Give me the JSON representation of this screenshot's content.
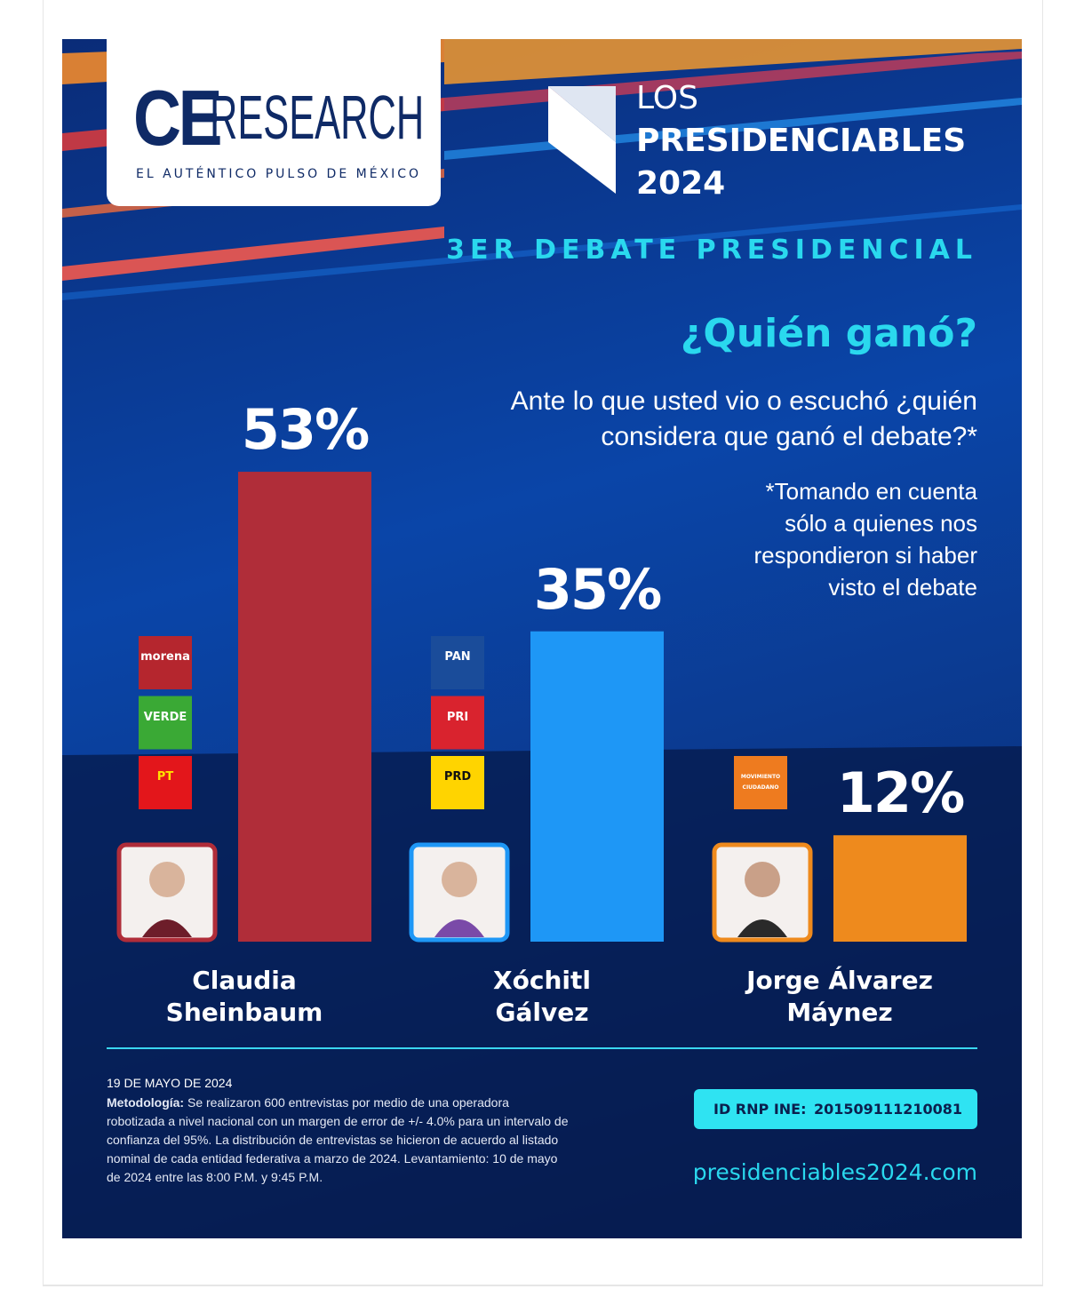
{
  "header": {
    "brand": [
      "CE",
      "RESEARCH"
    ],
    "tagline": "EL AUTÉNTICO PULSO DE MÉXICO",
    "series_title": [
      "LOS",
      "PRESIDENCIABLES",
      "2024"
    ],
    "event": "3ER DEBATE PRESIDENCIAL"
  },
  "chart_data": {
    "type": "bar",
    "title": "¿Quién ganó?",
    "subtitle": "Ante lo que usted vio o escuchó ¿quién considera que ganó el debate?*",
    "note": "*Tomando en cuenta sólo a quienes nos respondieron si haber visto el debate",
    "categories": [
      "Claudia Sheinbaum",
      "Xóchitl Gálvez",
      "Jorge Álvarez Máynez"
    ],
    "values": [
      53,
      35,
      12
    ],
    "value_labels": [
      "53%",
      "35%",
      "12%"
    ],
    "colors": [
      "#b02d39",
      "#1e97f6",
      "#ee8a1d"
    ],
    "parties": [
      [
        "morena",
        "VERDE",
        "PT"
      ],
      [
        "PAN",
        "PRI",
        "PRD"
      ],
      [
        "MOVIMIENTO CIUDADANO"
      ]
    ]
  },
  "footer": {
    "date": "19 DE MAYO DE 2024",
    "methodology_label": "Metodología:",
    "methodology": "Se realizaron 600 entrevistas por medio de una operadora robotizada a nivel nacional con un margen de error de +/- 4.0% para un intervalo de confianza del 95%. La distribución de entrevistas se hicieron de acuerdo al listado nominal de cada entidad federativa a marzo de 2024. Levantamiento: 10 de mayo de 2024 entre las 8:00 P.M. y 9:45 P.M.",
    "registry_label": "ID RNP INE:",
    "registry_id": "201509111210081",
    "website": "presidenciables2024.com"
  }
}
